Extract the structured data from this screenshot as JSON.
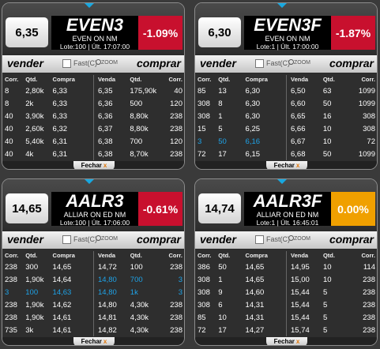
{
  "common": {
    "sell_label": "vender",
    "buy_label": "comprar",
    "fast_label": "Fast(C)",
    "zoom_label": "ZOOM",
    "close_label": "Fechar",
    "close_x": "x",
    "headers_left": [
      "Corr.",
      "Qtd.",
      "Compra"
    ],
    "headers_right": [
      "Venda",
      "Qtd.",
      "Corr."
    ]
  },
  "panels": [
    {
      "price": "6,35",
      "symbol": "EVEN3",
      "desc": "EVEN ON NM",
      "meta": "Lote:100 | Últ. 17:07:00",
      "change": "-1.09%",
      "change_color": "#c8102e",
      "bids": [
        [
          "8",
          "2,80k",
          "6,33"
        ],
        [
          "8",
          "2k",
          "6,33"
        ],
        [
          "40",
          "3,90k",
          "6,33"
        ],
        [
          "40",
          "2,60k",
          "6,32"
        ],
        [
          "40",
          "5,40k",
          "6,31"
        ],
        [
          "40",
          "4k",
          "6,31"
        ]
      ],
      "asks": [
        [
          "6,35",
          "175,90k",
          "40"
        ],
        [
          "6,36",
          "500",
          "120"
        ],
        [
          "6,36",
          "8,80k",
          "238"
        ],
        [
          "6,37",
          "8,80k",
          "238"
        ],
        [
          "6,38",
          "700",
          "120"
        ],
        [
          "6,38",
          "8,70k",
          "238"
        ]
      ],
      "bid_hl": [],
      "ask_hl": []
    },
    {
      "price": "6,30",
      "symbol": "EVEN3F",
      "desc": "EVEN ON NM",
      "meta": "Lote:1 | Últ. 17:00:00",
      "change": "-1.87%",
      "change_color": "#c8102e",
      "bids": [
        [
          "85",
          "13",
          "6,30"
        ],
        [
          "308",
          "8",
          "6,30"
        ],
        [
          "308",
          "1",
          "6,30"
        ],
        [
          "15",
          "5",
          "6,25"
        ],
        [
          "3",
          "50",
          "6,16"
        ],
        [
          "72",
          "17",
          "6,15"
        ]
      ],
      "asks": [
        [
          "6,50",
          "63",
          "1099"
        ],
        [
          "6,60",
          "50",
          "1099"
        ],
        [
          "6,65",
          "16",
          "308"
        ],
        [
          "6,66",
          "10",
          "308"
        ],
        [
          "6,67",
          "10",
          "72"
        ],
        [
          "6,68",
          "50",
          "1099"
        ]
      ],
      "bid_hl": [
        4
      ],
      "ask_hl": []
    },
    {
      "price": "14,65",
      "symbol": "AALR3",
      "desc": "ALLIAR ON ED NM",
      "meta": "Lote:100 | Últ. 17:06:00",
      "change": "-0.61%",
      "change_color": "#c8102e",
      "bids": [
        [
          "238",
          "300",
          "14,65"
        ],
        [
          "238",
          "1,90k",
          "14,64"
        ],
        [
          "3",
          "100",
          "14,63"
        ],
        [
          "238",
          "1,90k",
          "14,62"
        ],
        [
          "238",
          "1,90k",
          "14,61"
        ],
        [
          "735",
          "3k",
          "14,61"
        ]
      ],
      "asks": [
        [
          "14,72",
          "100",
          "238"
        ],
        [
          "14,80",
          "700",
          "3"
        ],
        [
          "14,80",
          "1k",
          "3"
        ],
        [
          "14,80",
          "4,30k",
          "238"
        ],
        [
          "14,81",
          "4,30k",
          "238"
        ],
        [
          "14,82",
          "4,30k",
          "238"
        ]
      ],
      "bid_hl": [
        2
      ],
      "ask_hl": [
        1,
        2
      ]
    },
    {
      "price": "14,74",
      "symbol": "AALR3F",
      "desc": "ALLIAR ON ED NM",
      "meta": "Lote:1 | Últ. 16:45:01",
      "change": "0.00%",
      "change_color": "#f0a000",
      "bids": [
        [
          "386",
          "50",
          "14,65"
        ],
        [
          "308",
          "1",
          "14,65"
        ],
        [
          "308",
          "9",
          "14,60"
        ],
        [
          "308",
          "6",
          "14,31"
        ],
        [
          "85",
          "10",
          "14,31"
        ],
        [
          "72",
          "17",
          "14,27"
        ]
      ],
      "asks": [
        [
          "14,95",
          "10",
          "114"
        ],
        [
          "15,00",
          "10",
          "238"
        ],
        [
          "15,44",
          "5",
          "238"
        ],
        [
          "15,44",
          "5",
          "238"
        ],
        [
          "15,44",
          "5",
          "238"
        ],
        [
          "15,74",
          "5",
          "238"
        ]
      ],
      "bid_hl": [],
      "ask_hl": []
    }
  ]
}
